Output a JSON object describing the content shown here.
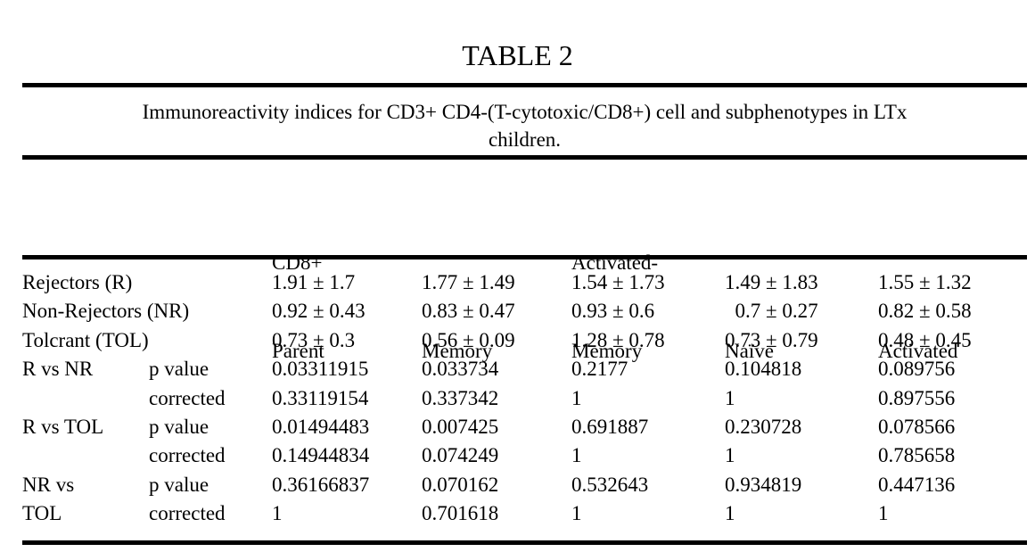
{
  "title": "TABLE 2",
  "caption": {
    "line1": "Immunoreactivity indices for CD3+ CD4-(T-cytotoxic/CD8+) cell and subphenotypes in LTx",
    "line2": "children."
  },
  "table": {
    "column_headers": [
      {
        "line1": "CD8+",
        "line2": "Parent"
      },
      {
        "line1": "",
        "line2": "Memory"
      },
      {
        "line1": "Activated-",
        "line2": "Memory"
      },
      {
        "line1": "",
        "line2": "Naïve"
      },
      {
        "line1": "",
        "line2": "Activated"
      }
    ],
    "rows": [
      {
        "label": "Rejectors (R)",
        "sub": "",
        "values": [
          "1.91 ± 1.7",
          "1.77 ± 1.49",
          "1.54 ± 1.73",
          "1.49 ± 1.83",
          "1.55 ± 1.32"
        ]
      },
      {
        "label": "Non-Rejectors (NR)",
        "sub": "",
        "values": [
          "0.92 ± 0.43",
          "0.83 ± 0.47",
          "0.93 ± 0.6",
          "  0.7 ± 0.27",
          "0.82 ± 0.58"
        ]
      },
      {
        "label": "Tolcrant (TOL)",
        "sub": "",
        "values": [
          "0.73 ± 0.3",
          "0.56 ± 0.09",
          "1.28 ± 0.78",
          "0.73 ± 0.79",
          "0.48 ± 0.45"
        ]
      },
      {
        "label": "R vs NR",
        "sub": "p value",
        "values": [
          "0.03311915",
          "0.033734",
          "0.2177",
          "0.104818",
          "0.089756"
        ]
      },
      {
        "label": "",
        "sub": "corrected",
        "values": [
          "0.33119154",
          "0.337342",
          "1",
          "1",
          "0.897556"
        ]
      },
      {
        "label": "R vs TOL",
        "sub": "p value",
        "values": [
          "0.01494483",
          "0.007425",
          "0.691887",
          "0.230728",
          "0.078566"
        ]
      },
      {
        "label": "",
        "sub": "corrected",
        "values": [
          "0.14944834",
          "0.074249",
          "1",
          "1",
          "0.785658"
        ]
      },
      {
        "label": "NR vs",
        "sub": "p value",
        "values": [
          "0.36166837",
          "0.070162",
          "0.532643",
          "0.934819",
          "0.447136"
        ]
      },
      {
        "label": "TOL",
        "sub": "corrected",
        "values": [
          "1",
          "0.701618",
          "1",
          "1",
          "1"
        ]
      }
    ]
  },
  "colors": {
    "background": "#ffffff",
    "text": "#000000",
    "rule": "#000000"
  }
}
